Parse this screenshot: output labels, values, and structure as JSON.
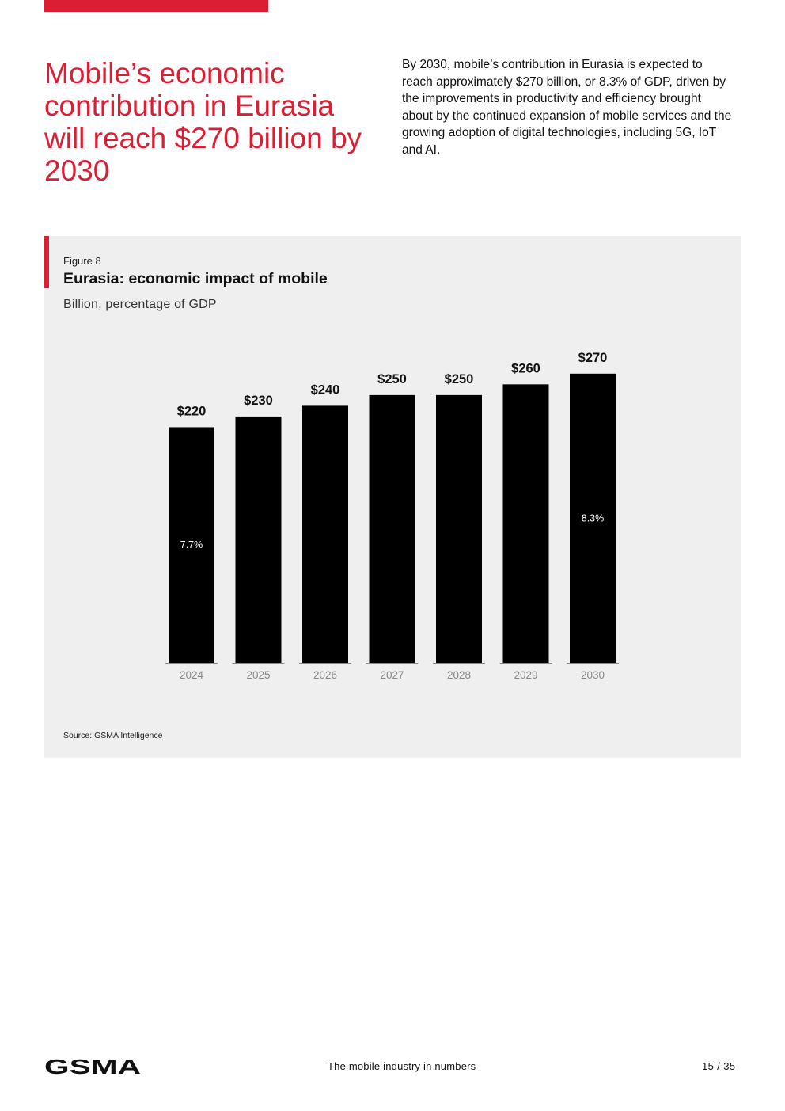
{
  "brand": {
    "accent_color": "#dc1e35",
    "logo_text": "GSMA"
  },
  "headline": "Mobile’s economic contribution in Eurasia will reach $270 billion by 2030",
  "intro_text": "By 2030, mobile’s contribution in Eurasia is expected to reach approximately $270 billion, or 8.3% of GDP, driven by the improvements in productivity and efficiency brought about by the continued expansion of mobile services and the growing adoption of digital technologies, including 5G, IoT and AI.",
  "figure": {
    "number_label": "Figure 8",
    "title": "Eurasia: economic impact of mobile",
    "subtitle": "Billion, percentage of GDP",
    "source": "Source: GSMA Intelligence"
  },
  "chart_data": {
    "type": "bar",
    "title": "Eurasia: economic impact of mobile",
    "subtitle": "Billion, percentage of GDP",
    "xlabel": "",
    "ylabel": "",
    "categories": [
      "2024",
      "2025",
      "2026",
      "2027",
      "2028",
      "2029",
      "2030"
    ],
    "values": [
      220,
      230,
      240,
      250,
      250,
      260,
      270
    ],
    "value_labels": [
      "$220",
      "$230",
      "$240",
      "$250",
      "$250",
      "$260",
      "$270"
    ],
    "gdp_share_labels": [
      "7.7%",
      "",
      "",
      "",
      "",
      "",
      "8.3%"
    ],
    "ylim": [
      0,
      270
    ],
    "grid": false,
    "bar_color": "#000000"
  },
  "footer": {
    "title": "The mobile industry in numbers",
    "page": "15 / 35"
  }
}
